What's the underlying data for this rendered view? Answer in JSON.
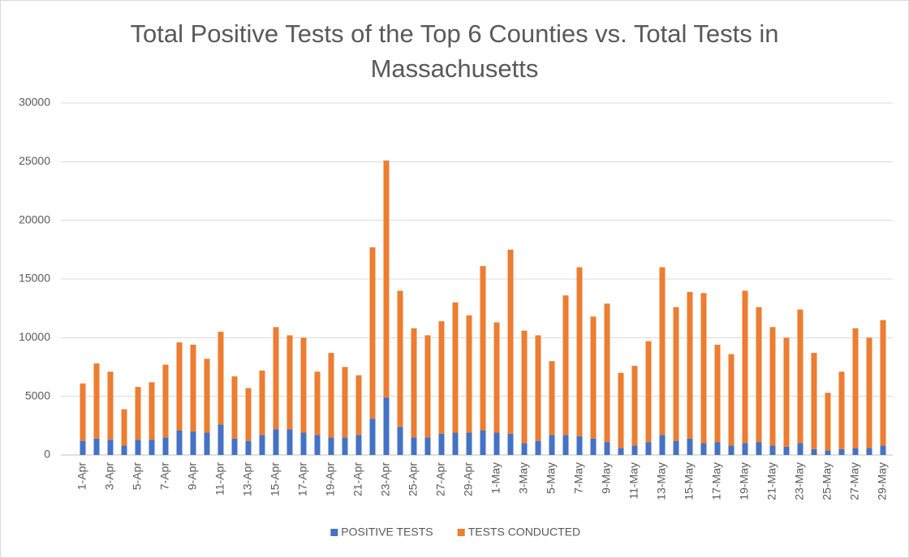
{
  "chart_data": {
    "type": "stacked_bar",
    "title": "Total Positive Tests of the Top 6 Counties vs. Total Tests in Massachusetts",
    "categories": [
      "1-Apr",
      null,
      "3-Apr",
      null,
      "5-Apr",
      null,
      "7-Apr",
      null,
      "9-Apr",
      null,
      "11-Apr",
      null,
      "13-Apr",
      null,
      "15-Apr",
      null,
      "17-Apr",
      null,
      "19-Apr",
      null,
      "21-Apr",
      null,
      "23-Apr",
      null,
      "25-Apr",
      null,
      "27-Apr",
      null,
      "29-Apr",
      null,
      "1-May",
      null,
      "3-May",
      null,
      "5-May",
      null,
      "7-May",
      null,
      "9-May",
      null,
      "11-May",
      null,
      "13-May",
      null,
      "15-May",
      null,
      "17-May",
      null,
      "19-May",
      null,
      "21-May",
      null,
      "23-May",
      null,
      "25-May",
      null,
      "27-May",
      null,
      "29-May"
    ],
    "series": [
      {
        "name": "POSITIVE TESTS",
        "color": "#4472c4",
        "values": [
          1200,
          1400,
          1300,
          800,
          1300,
          1300,
          1500,
          2100,
          2000,
          1900,
          2600,
          1400,
          1200,
          1700,
          2200,
          2200,
          1900,
          1700,
          1500,
          1500,
          1700,
          3100,
          4900,
          2400,
          1500,
          1500,
          1800,
          1900,
          1900,
          2100,
          1900,
          1800,
          1000,
          1200,
          1700,
          1700,
          1600,
          1400,
          1100,
          600,
          800,
          1100,
          1700,
          1200,
          1400,
          1000,
          1100,
          800,
          1000,
          1100,
          800,
          700,
          1000,
          500,
          400,
          500,
          600,
          600,
          800
        ]
      },
      {
        "name": "TESTS CONDUCTED",
        "color": "#ed7d31",
        "values": [
          4900,
          6400,
          5800,
          3100,
          4500,
          4900,
          6200,
          7500,
          7400,
          6300,
          7900,
          5300,
          4500,
          5500,
          8700,
          8000,
          8100,
          5400,
          7200,
          6000,
          5100,
          14600,
          20200,
          11600,
          9300,
          8700,
          9600,
          11100,
          10000,
          14000,
          9400,
          15700,
          9600,
          9000,
          6300,
          11900,
          14400,
          10400,
          11800,
          6400,
          6800,
          8600,
          14300,
          11400,
          12500,
          12800,
          8300,
          7800,
          13000,
          11500,
          10100,
          9300,
          11400,
          8200,
          4900,
          6600,
          10200,
          9400,
          10700
        ]
      }
    ],
    "ylim": [
      0,
      30000
    ],
    "yticks": [
      0,
      5000,
      10000,
      15000,
      20000,
      25000,
      30000
    ],
    "grid": true,
    "legend": "bottom"
  }
}
